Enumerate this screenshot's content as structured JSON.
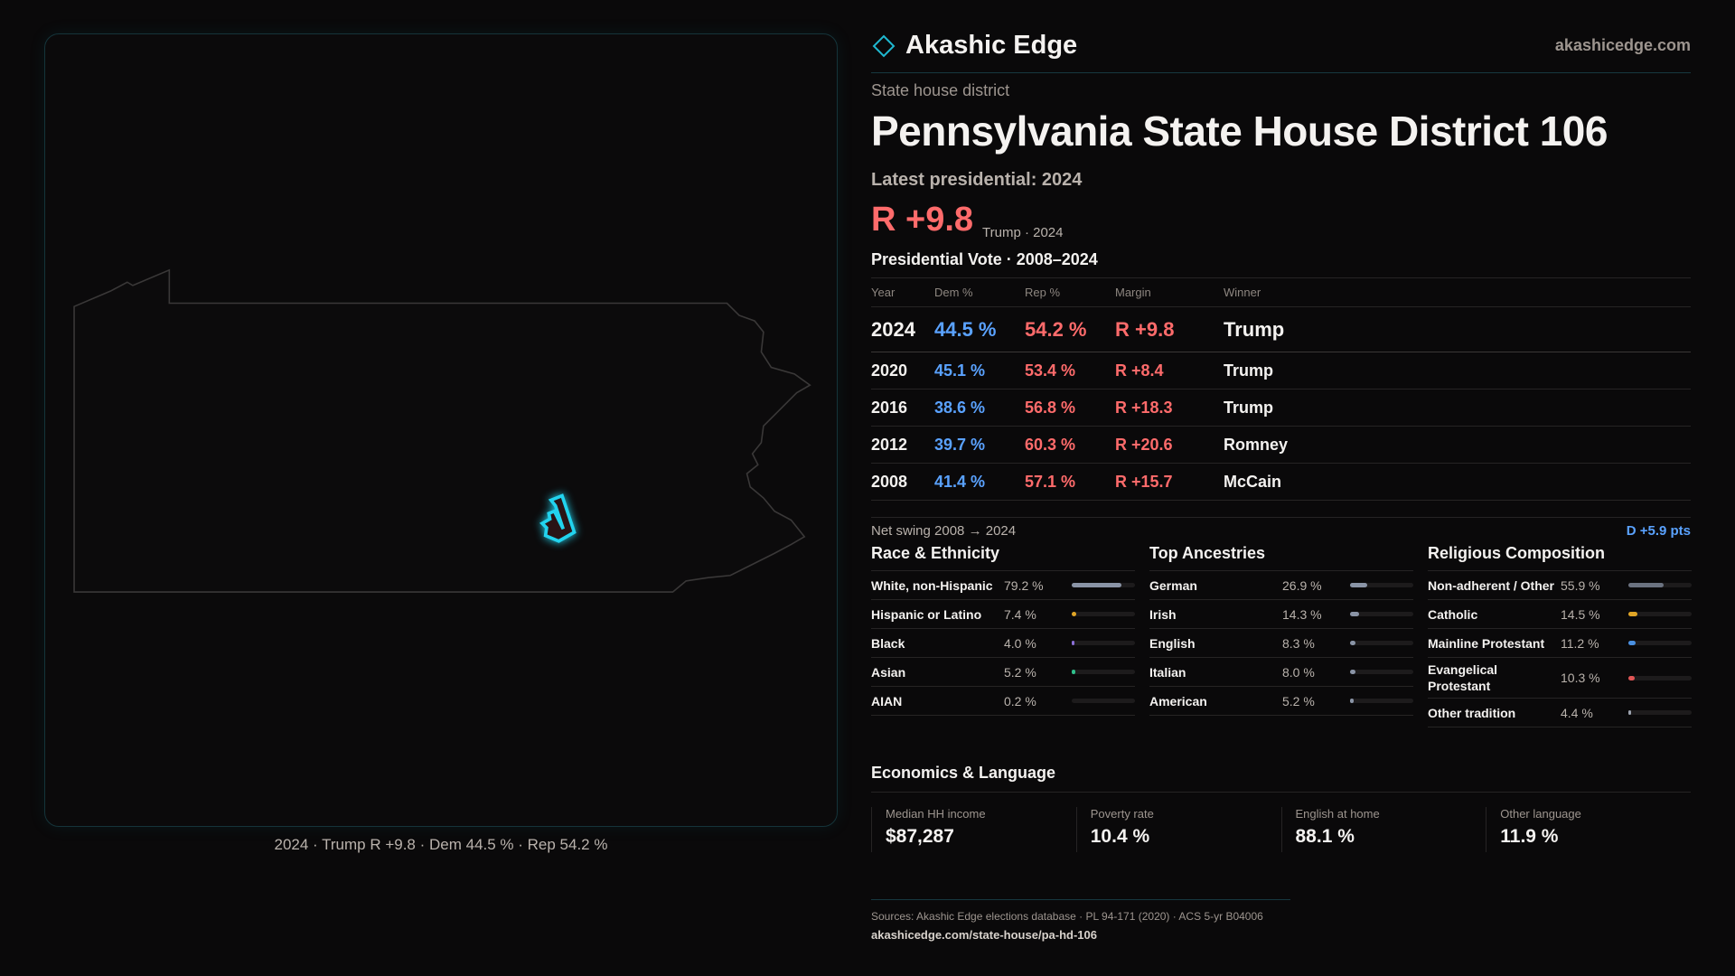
{
  "header": {
    "brand": "Akashic Edge",
    "site": "akashicedge.com",
    "accent": "#1fb8d0"
  },
  "district": {
    "kind": "State house district",
    "title": "Pennsylvania State House District 106",
    "latest": "Latest presidential: 2024",
    "margin": "R +9.8",
    "margin_sub": "Trump · 2024"
  },
  "map": {
    "caption": "2024 · Trump R +9.8 · Dem 44.5 % · Rep 54.2 %",
    "state": "Pennsylvania",
    "highlight_color": "#22d3ee"
  },
  "presidential": {
    "title": "Presidential Vote · 2008–2024",
    "columns": [
      "Year",
      "Dem %",
      "Rep %",
      "Margin",
      "Winner"
    ],
    "rows": [
      [
        "2024",
        "44.5 %",
        "54.2 %",
        "R +9.8",
        "Trump"
      ],
      [
        "2020",
        "45.1 %",
        "53.4 %",
        "R +8.4",
        "Trump"
      ],
      [
        "2016",
        "38.6 %",
        "56.8 %",
        "R +18.3",
        "Trump"
      ],
      [
        "2012",
        "39.7 %",
        "60.3 %",
        "R +20.6",
        "Romney"
      ],
      [
        "2008",
        "41.4 %",
        "57.1 %",
        "R +15.7",
        "McCain"
      ]
    ],
    "swing_label": "Net swing 2008 → 2024",
    "swing_value": "D +5.9 pts"
  },
  "sections": [
    {
      "title": "Race & Ethnicity",
      "items": [
        {
          "label": "White, non-Hispanic",
          "value": "79.2 %",
          "pct": 79.2,
          "color": "#8a94a6"
        },
        {
          "label": "Hispanic or Latino",
          "value": "7.4 %",
          "pct": 7.4,
          "color": "#e0a526"
        },
        {
          "label": "Black",
          "value": "4.0 %",
          "pct": 4.0,
          "color": "#8b6fd6"
        },
        {
          "label": "Asian",
          "value": "5.2 %",
          "pct": 5.2,
          "color": "#2fbf8a"
        },
        {
          "label": "AIAN",
          "value": "0.2 %",
          "pct": 0.2,
          "color": "#8a94a6"
        }
      ]
    },
    {
      "title": "Top Ancestries",
      "items": [
        {
          "label": "German",
          "value": "26.9 %",
          "pct": 26.9,
          "color": "#8a94a6"
        },
        {
          "label": "Irish",
          "value": "14.3 %",
          "pct": 14.3,
          "color": "#8a94a6"
        },
        {
          "label": "English",
          "value": "8.3 %",
          "pct": 8.3,
          "color": "#8a94a6"
        },
        {
          "label": "Italian",
          "value": "8.0 %",
          "pct": 8.0,
          "color": "#8a94a6"
        },
        {
          "label": "American",
          "value": "5.2 %",
          "pct": 5.2,
          "color": "#8a94a6"
        }
      ]
    },
    {
      "title": "Religious Composition",
      "items": [
        {
          "label": "Non-adherent / Other",
          "value": "55.9 %",
          "pct": 55.9,
          "color": "#6b7280"
        },
        {
          "label": "Catholic",
          "value": "14.5 %",
          "pct": 14.5,
          "color": "#e0a526"
        },
        {
          "label": "Mainline Protestant",
          "value": "11.2 %",
          "pct": 11.2,
          "color": "#4a90e2"
        },
        {
          "label": "Evangelical Protestant",
          "value": "10.3 %",
          "pct": 10.3,
          "color": "#e05555"
        },
        {
          "label": "Other tradition",
          "value": "4.4 %",
          "pct": 4.4,
          "color": "#9ca3af"
        }
      ]
    }
  ],
  "economics": {
    "title": "Economics & Language",
    "stats": [
      {
        "label": "Median HH income",
        "value": "$87,287"
      },
      {
        "label": "Poverty rate",
        "value": "10.4 %"
      },
      {
        "label": "English at home",
        "value": "88.1 %"
      },
      {
        "label": "Other language",
        "value": "11.9 %"
      }
    ]
  },
  "footer": {
    "sources": "Sources: Akashic Edge elections database · PL 94-171 (2020) · ACS 5-yr B04006",
    "url": "akashicedge.com/state-house/pa-hd-106"
  }
}
